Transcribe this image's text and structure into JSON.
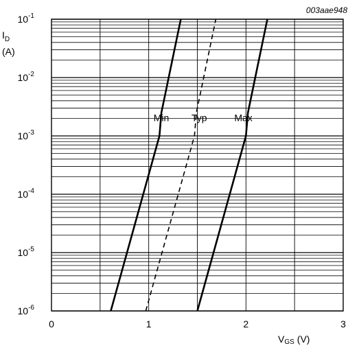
{
  "chart_data": {
    "type": "line",
    "figure_code": "003aae948",
    "y_label_main": "I",
    "y_label_sub": "D",
    "y_label_unit": "(A)",
    "x_label_main": "V",
    "x_label_sub": "GS",
    "x_label_unit": "(V)",
    "xlim": [
      0,
      3
    ],
    "ylim": [
      1e-06,
      0.1
    ],
    "y_scale": "log",
    "grid": true,
    "x_ticks": [
      {
        "value": 0,
        "label": "0"
      },
      {
        "value": 1,
        "label": "1"
      },
      {
        "value": 2,
        "label": "2"
      },
      {
        "value": 3,
        "label": "3"
      }
    ],
    "y_ticks": [
      {
        "value": 1e-06,
        "base": "10",
        "exp": "-6"
      },
      {
        "value": 1e-05,
        "base": "10",
        "exp": "-5"
      },
      {
        "value": 0.0001,
        "base": "10",
        "exp": "-4"
      },
      {
        "value": 0.001,
        "base": "10",
        "exp": "-3"
      },
      {
        "value": 0.01,
        "base": "10",
        "exp": "-2"
      },
      {
        "value": 0.1,
        "base": "10",
        "exp": "-1"
      }
    ],
    "series": [
      {
        "name": "Min",
        "style": "solid",
        "points": [
          [
            0.61,
            1e-06
          ],
          [
            1.11,
            0.001
          ],
          [
            1.13,
            0.0025
          ],
          [
            1.33,
            0.1
          ]
        ],
        "label_at": [
          1.05,
          0.0018
        ]
      },
      {
        "name": "Typ",
        "style": "dashed",
        "points": [
          [
            0.97,
            1e-06
          ],
          [
            1.47,
            0.001
          ],
          [
            1.49,
            0.0025
          ],
          [
            1.69,
            0.1
          ]
        ],
        "label_at": [
          1.44,
          0.0018
        ]
      },
      {
        "name": "Max",
        "style": "solid",
        "points": [
          [
            1.5,
            1e-06
          ],
          [
            2.0,
            0.001
          ],
          [
            2.02,
            0.0025
          ],
          [
            2.22,
            0.1
          ]
        ],
        "label_at": [
          1.88,
          0.0018
        ]
      }
    ]
  }
}
